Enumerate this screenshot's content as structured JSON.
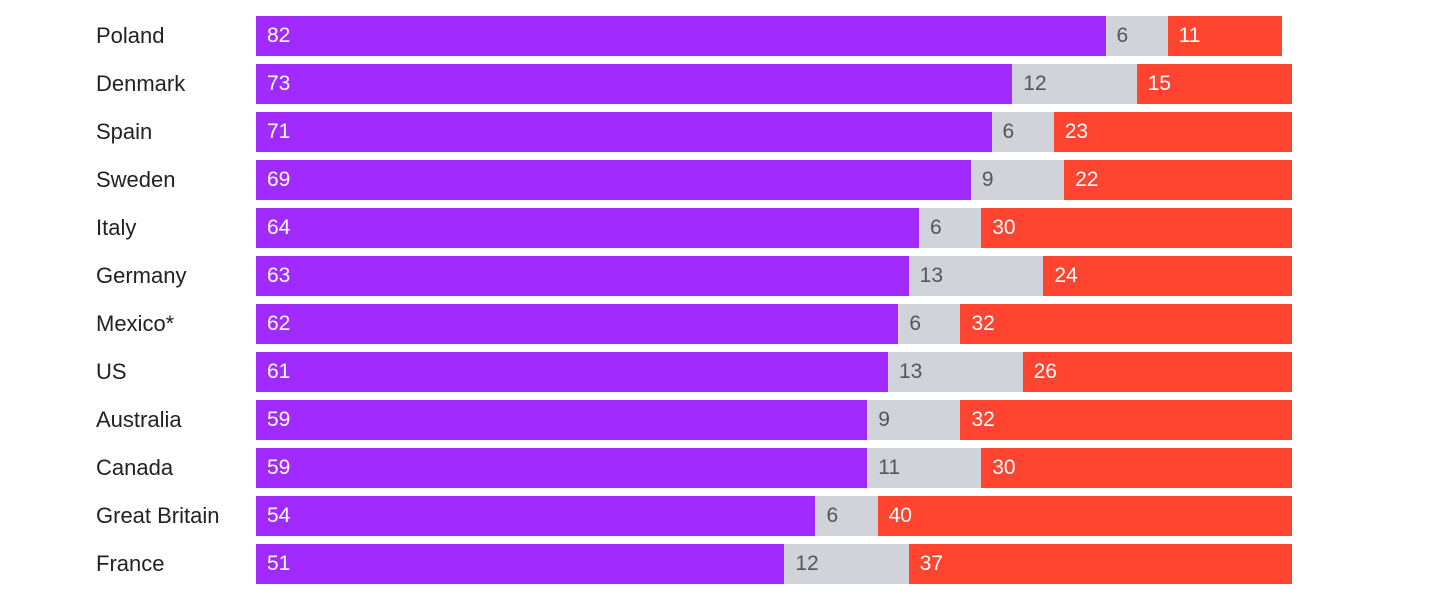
{
  "chart_data": {
    "type": "bar",
    "orientation": "horizontal",
    "stacked": true,
    "total": 100,
    "categories": [
      "Poland",
      "Denmark",
      "Spain",
      "Sweden",
      "Italy",
      "Germany",
      "Mexico*",
      "US",
      "Australia",
      "Canada",
      "Great Britain",
      "France"
    ],
    "series": [
      {
        "values": [
          82,
          73,
          71,
          69,
          64,
          63,
          62,
          61,
          59,
          59,
          54,
          51
        ],
        "color": "#a12bff",
        "label_color": "#ffffff"
      },
      {
        "values": [
          6,
          12,
          6,
          9,
          6,
          13,
          6,
          13,
          9,
          11,
          6,
          12
        ],
        "color": "#d0d4da",
        "label_color": "#555555"
      },
      {
        "values": [
          11,
          15,
          23,
          22,
          30,
          24,
          32,
          26,
          32,
          30,
          40,
          37
        ],
        "color": "#ff4530",
        "label_color": "#ffffff"
      }
    ],
    "grid": false,
    "legend": "none"
  }
}
